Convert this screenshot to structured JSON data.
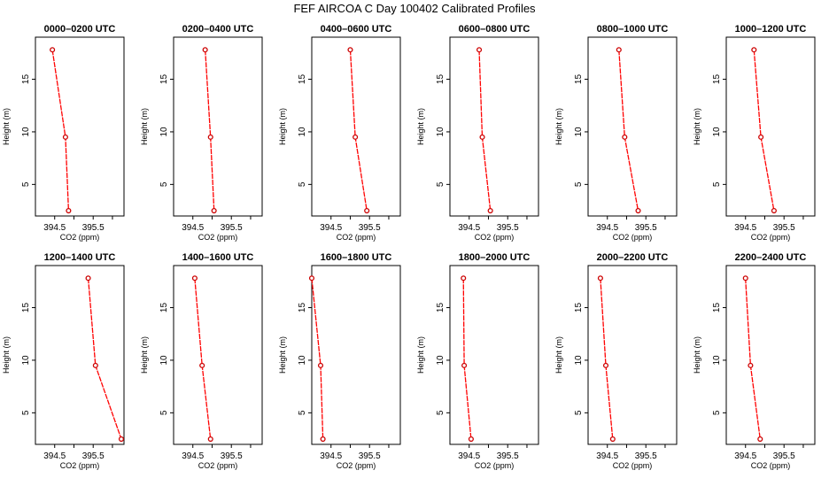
{
  "figure_title": "FEF AIRCOA C  Day 100402  Calibrated Profiles",
  "colors": {
    "series": "#ff0000",
    "marker": "#cc0000",
    "axes": "#000000"
  },
  "chart_data": [
    {
      "type": "line",
      "title": "0000–0200 UTC",
      "xlabel": "CO2 (ppm)",
      "ylabel": "Height (m)",
      "xlim": [
        394.0,
        396.3
      ],
      "ylim": [
        2.0,
        19.0
      ],
      "xticks": [
        "394.5",
        "395.5"
      ],
      "yticks": [
        "5",
        "10",
        "15"
      ],
      "series": [
        {
          "name": "CO2",
          "x": [
            394.44,
            394.78,
            394.86
          ],
          "y": [
            17.8,
            9.5,
            2.5
          ]
        }
      ]
    },
    {
      "type": "line",
      "title": "0200–0400 UTC",
      "xlabel": "CO2 (ppm)",
      "ylabel": "Height (m)",
      "xlim": [
        394.0,
        396.3
      ],
      "ylim": [
        2.0,
        19.0
      ],
      "xticks": [
        "394.5",
        "395.5"
      ],
      "yticks": [
        "5",
        "10",
        "15"
      ],
      "series": [
        {
          "name": "CO2",
          "x": [
            394.82,
            394.96,
            395.05
          ],
          "y": [
            17.8,
            9.5,
            2.5
          ]
        }
      ]
    },
    {
      "type": "line",
      "title": "0400–0600 UTC",
      "xlabel": "CO2 (ppm)",
      "ylabel": "Height (m)",
      "xlim": [
        394.0,
        396.3
      ],
      "ylim": [
        2.0,
        19.0
      ],
      "xticks": [
        "394.5",
        "395.5"
      ],
      "yticks": [
        "5",
        "10",
        "15"
      ],
      "series": [
        {
          "name": "CO2",
          "x": [
            395.0,
            395.13,
            395.43
          ],
          "y": [
            17.8,
            9.5,
            2.5
          ]
        }
      ]
    },
    {
      "type": "line",
      "title": "0600–0800 UTC",
      "xlabel": "CO2 (ppm)",
      "ylabel": "Height (m)",
      "xlim": [
        394.0,
        396.3
      ],
      "ylim": [
        2.0,
        19.0
      ],
      "xticks": [
        "394.5",
        "395.5"
      ],
      "yticks": [
        "5",
        "10",
        "15"
      ],
      "series": [
        {
          "name": "CO2",
          "x": [
            394.76,
            394.84,
            395.05
          ],
          "y": [
            17.8,
            9.5,
            2.5
          ]
        }
      ]
    },
    {
      "type": "line",
      "title": "0800–1000 UTC",
      "xlabel": "CO2 (ppm)",
      "ylabel": "Height (m)",
      "xlim": [
        394.0,
        396.3
      ],
      "ylim": [
        2.0,
        19.0
      ],
      "xticks": [
        "394.5",
        "395.5"
      ],
      "yticks": [
        "5",
        "10",
        "15"
      ],
      "series": [
        {
          "name": "CO2",
          "x": [
            394.8,
            394.95,
            395.3
          ],
          "y": [
            17.8,
            9.5,
            2.5
          ]
        }
      ]
    },
    {
      "type": "line",
      "title": "1000–1200 UTC",
      "xlabel": "CO2 (ppm)",
      "ylabel": "Height (m)",
      "xlim": [
        394.0,
        396.3
      ],
      "ylim": [
        2.0,
        19.0
      ],
      "xticks": [
        "394.5",
        "395.5"
      ],
      "yticks": [
        "5",
        "10",
        "15"
      ],
      "series": [
        {
          "name": "CO2",
          "x": [
            394.72,
            394.9,
            395.24
          ],
          "y": [
            17.8,
            9.5,
            2.5
          ]
        }
      ]
    },
    {
      "type": "line",
      "title": "1200–1400 UTC",
      "xlabel": "CO2 (ppm)",
      "ylabel": "Height (m)",
      "xlim": [
        394.0,
        396.3
      ],
      "ylim": [
        2.0,
        19.0
      ],
      "xticks": [
        "394.5",
        "395.5"
      ],
      "yticks": [
        "5",
        "10",
        "15"
      ],
      "series": [
        {
          "name": "CO2",
          "x": [
            395.37,
            395.56,
            396.23
          ],
          "y": [
            17.8,
            9.5,
            2.5
          ]
        }
      ]
    },
    {
      "type": "line",
      "title": "1400–1600 UTC",
      "xlabel": "CO2 (ppm)",
      "ylabel": "Height (m)",
      "xlim": [
        394.0,
        396.3
      ],
      "ylim": [
        2.0,
        19.0
      ],
      "xticks": [
        "394.5",
        "395.5"
      ],
      "yticks": [
        "5",
        "10",
        "15"
      ],
      "series": [
        {
          "name": "CO2",
          "x": [
            394.55,
            394.74,
            394.96
          ],
          "y": [
            17.8,
            9.5,
            2.5
          ]
        }
      ]
    },
    {
      "type": "line",
      "title": "1600–1800 UTC",
      "xlabel": "CO2 (ppm)",
      "ylabel": "Height (m)",
      "xlim": [
        394.0,
        396.3
      ],
      "ylim": [
        2.0,
        19.0
      ],
      "xticks": [
        "394.5",
        "395.5"
      ],
      "yticks": [
        "5",
        "10",
        "15"
      ],
      "series": [
        {
          "name": "CO2",
          "x": [
            394.0,
            394.23,
            394.29
          ],
          "y": [
            17.8,
            9.5,
            2.5
          ]
        }
      ]
    },
    {
      "type": "line",
      "title": "1800–2000 UTC",
      "xlabel": "CO2 (ppm)",
      "ylabel": "Height (m)",
      "xlim": [
        394.0,
        396.3
      ],
      "ylim": [
        2.0,
        19.0
      ],
      "xticks": [
        "394.5",
        "395.5"
      ],
      "yticks": [
        "5",
        "10",
        "15"
      ],
      "series": [
        {
          "name": "CO2",
          "x": [
            394.35,
            394.37,
            394.55
          ],
          "y": [
            17.8,
            9.5,
            2.5
          ]
        }
      ]
    },
    {
      "type": "line",
      "title": "2000–2200 UTC",
      "xlabel": "CO2 (ppm)",
      "ylabel": "Height (m)",
      "xlim": [
        394.0,
        396.3
      ],
      "ylim": [
        2.0,
        19.0
      ],
      "xticks": [
        "394.5",
        "395.5"
      ],
      "yticks": [
        "5",
        "10",
        "15"
      ],
      "series": [
        {
          "name": "CO2",
          "x": [
            394.32,
            394.46,
            394.64
          ],
          "y": [
            17.8,
            9.5,
            2.5
          ]
        }
      ]
    },
    {
      "type": "line",
      "title": "2200–2400 UTC",
      "xlabel": "CO2 (ppm)",
      "ylabel": "Height (m)",
      "xlim": [
        394.0,
        396.3
      ],
      "ylim": [
        2.0,
        19.0
      ],
      "xticks": [
        "394.5",
        "395.5"
      ],
      "yticks": [
        "5",
        "10",
        "15"
      ],
      "series": [
        {
          "name": "CO2",
          "x": [
            394.5,
            394.63,
            394.88
          ],
          "y": [
            17.8,
            9.5,
            2.5
          ]
        }
      ]
    }
  ]
}
